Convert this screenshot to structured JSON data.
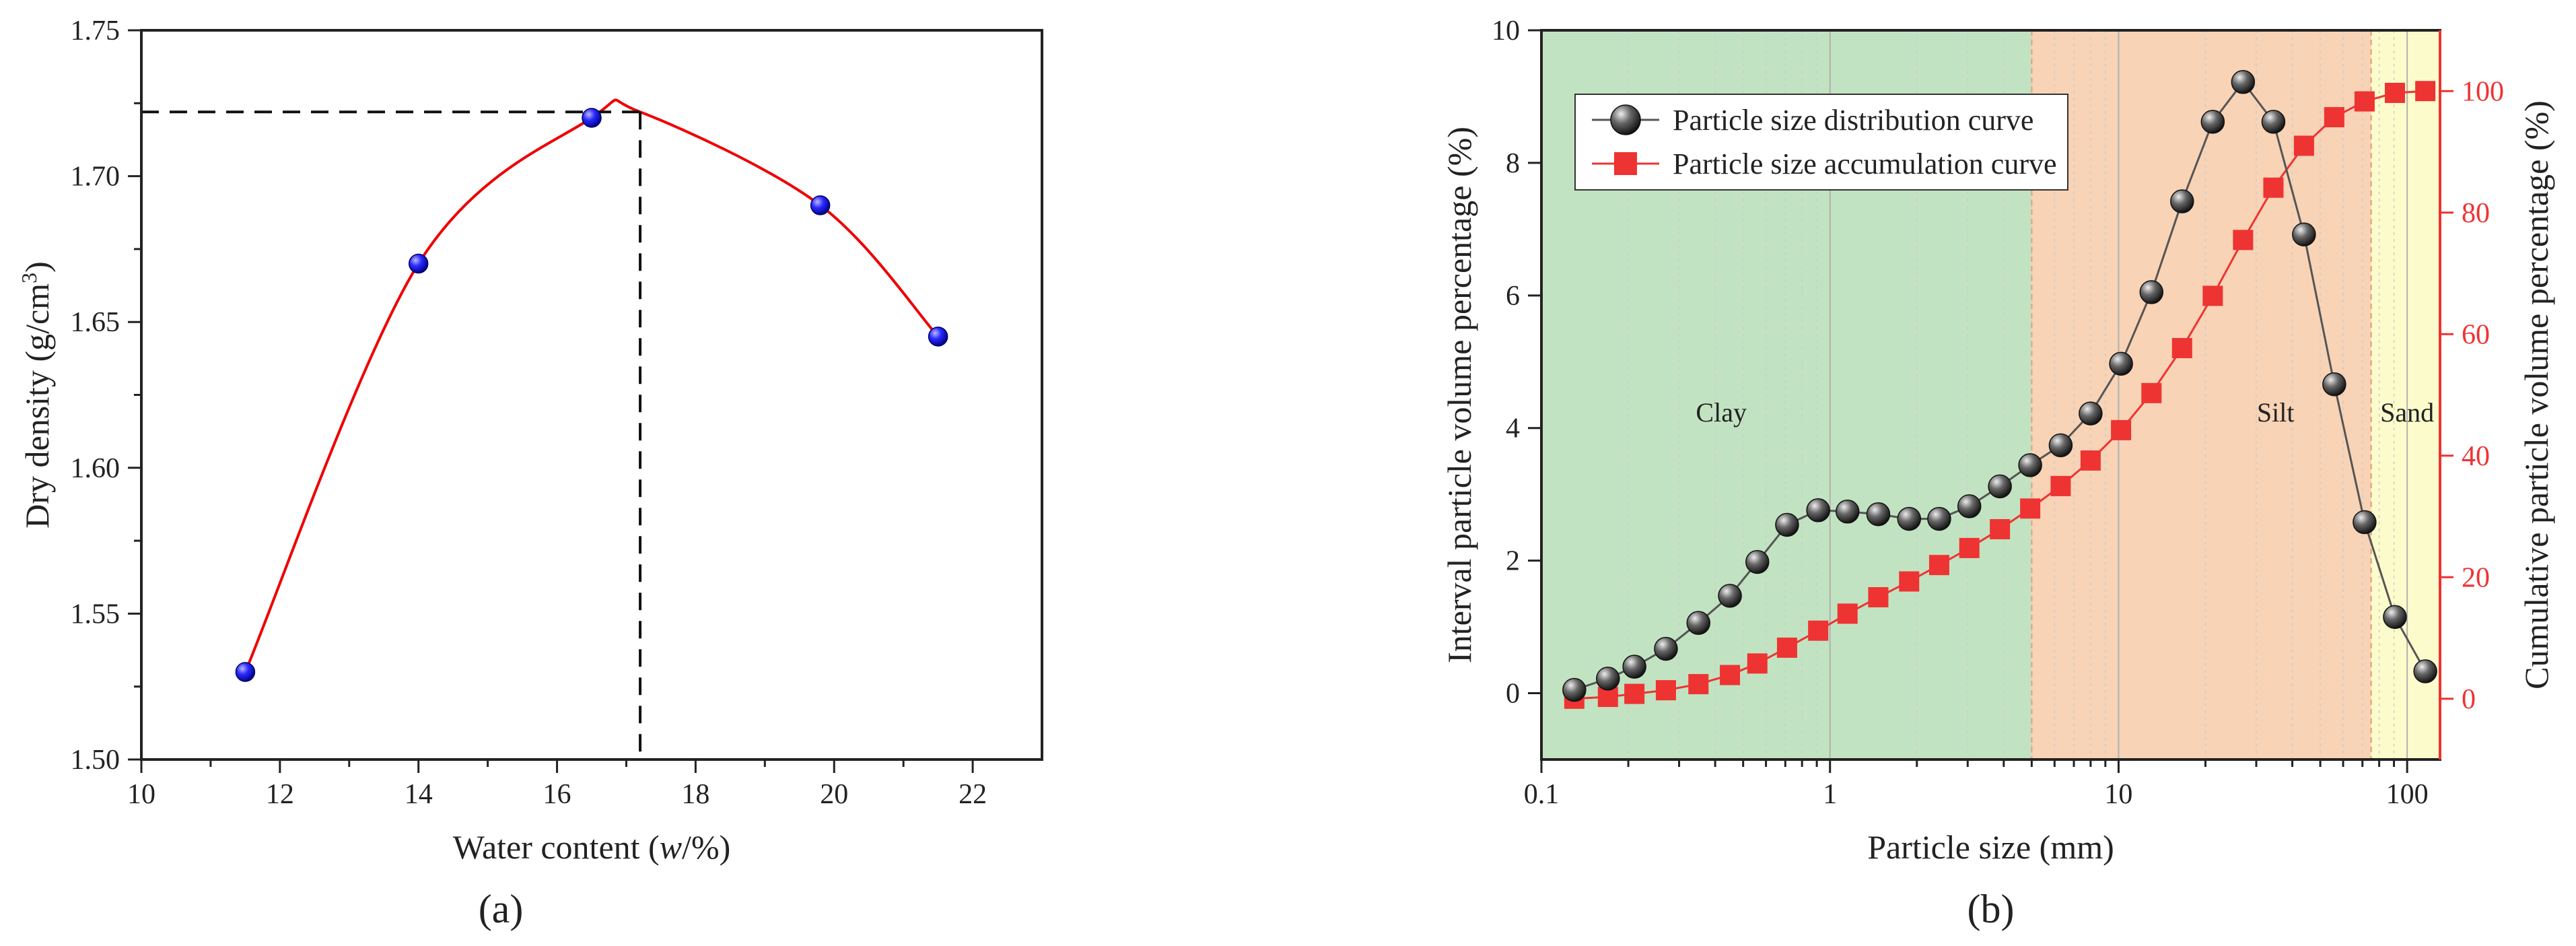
{
  "chart_data": [
    {
      "type": "scatter",
      "panel": "(a)",
      "xlabel_prefix": "Water content (",
      "xlabel_var": "w",
      "xlabel_suffix": "/%)",
      "ylabel": "Dry density (g/cm",
      "ylabel_sup": "3",
      "ylabel_end": ")",
      "xlim": [
        10,
        23
      ],
      "ylim": [
        1.5,
        1.75
      ],
      "xticks": [
        10,
        12,
        14,
        16,
        18,
        20,
        22
      ],
      "yticks": [
        "1.50",
        "1.55",
        "1.60",
        "1.65",
        "1.70",
        "1.75"
      ],
      "points": [
        {
          "x": 11.5,
          "y": 1.53
        },
        {
          "x": 14.0,
          "y": 1.67
        },
        {
          "x": 16.5,
          "y": 1.72
        },
        {
          "x": 19.8,
          "y": 1.69
        },
        {
          "x": 21.5,
          "y": 1.645
        }
      ],
      "fit_curve": {
        "color": "#ee0000",
        "peak_x": 17.2,
        "peak_y": 1.722
      },
      "marker_color": "#1a1aff",
      "guide_lines": {
        "x": 17.2,
        "y": 1.722,
        "style": "dashed"
      }
    },
    {
      "type": "line",
      "panel": "(b)",
      "xlabel": "Particle size (mm)",
      "ylabel_left": "Interval particle volume percentage (%)",
      "ylabel_right": "Cumulative particle volume percentage (%)",
      "xscale": "log",
      "xlim": [
        0.1,
        130
      ],
      "ylim_left": [
        -1,
        10
      ],
      "ylim_right": [
        -10,
        110
      ],
      "xticks": [
        {
          "v": 0.1,
          "label": "0.1"
        },
        {
          "v": 1,
          "label": "1"
        },
        {
          "v": 10,
          "label": "10"
        },
        {
          "v": 100,
          "label": "100"
        }
      ],
      "yticks_left": [
        0,
        2,
        4,
        6,
        8,
        10
      ],
      "yticks_right": [
        0,
        20,
        40,
        60,
        80,
        100
      ],
      "regions": [
        {
          "name": "Clay",
          "from": 0.1,
          "to": 5,
          "color": "#c2e3c1"
        },
        {
          "name": "Silt",
          "from": 5,
          "to": 75,
          "color": "#f8d3b6"
        },
        {
          "name": "Sand",
          "from": 75,
          "to": 130,
          "color": "#fbfbcc"
        }
      ],
      "series": [
        {
          "name": "Particle size distribution curve",
          "axis": "left",
          "color": "#555555",
          "marker": "sphere",
          "x": [
            0.13,
            0.17,
            0.21,
            0.27,
            0.35,
            0.45,
            0.56,
            0.71,
            0.91,
            1.15,
            1.47,
            1.88,
            2.39,
            3.04,
            3.88,
            4.94,
            6.3,
            8.0,
            10.2,
            13.0,
            16.6,
            21.2,
            27.0,
            34.4,
            43.9,
            55.9,
            71.2,
            90.7,
            115.6
          ],
          "values": [
            0.05,
            0.22,
            0.4,
            0.67,
            1.06,
            1.47,
            1.98,
            2.54,
            2.76,
            2.74,
            2.7,
            2.63,
            2.63,
            2.82,
            3.12,
            3.44,
            3.74,
            4.22,
            4.97,
            6.05,
            7.42,
            8.62,
            9.22,
            8.62,
            6.92,
            4.66,
            2.58,
            1.15,
            0.33
          ]
        },
        {
          "name": "Particle size accumulation curve",
          "axis": "right",
          "color": "#ee3333",
          "marker": "square",
          "x": [
            0.13,
            0.17,
            0.21,
            0.27,
            0.35,
            0.45,
            0.56,
            0.71,
            0.91,
            1.15,
            1.47,
            1.88,
            2.39,
            3.04,
            3.88,
            4.94,
            6.3,
            8.0,
            10.2,
            13.0,
            16.6,
            21.2,
            27.0,
            34.4,
            43.9,
            55.9,
            71.2,
            90.7,
            115.6
          ],
          "values": [
            0.0,
            0.3,
            0.8,
            1.4,
            2.4,
            3.9,
            5.8,
            8.4,
            11.2,
            14.0,
            16.7,
            19.3,
            22.0,
            24.8,
            27.9,
            31.3,
            35.0,
            39.2,
            44.2,
            50.3,
            57.7,
            66.3,
            75.5,
            84.1,
            91.0,
            95.7,
            98.3,
            99.7,
            100.0
          ]
        }
      ],
      "legend_position": "top-left"
    }
  ]
}
